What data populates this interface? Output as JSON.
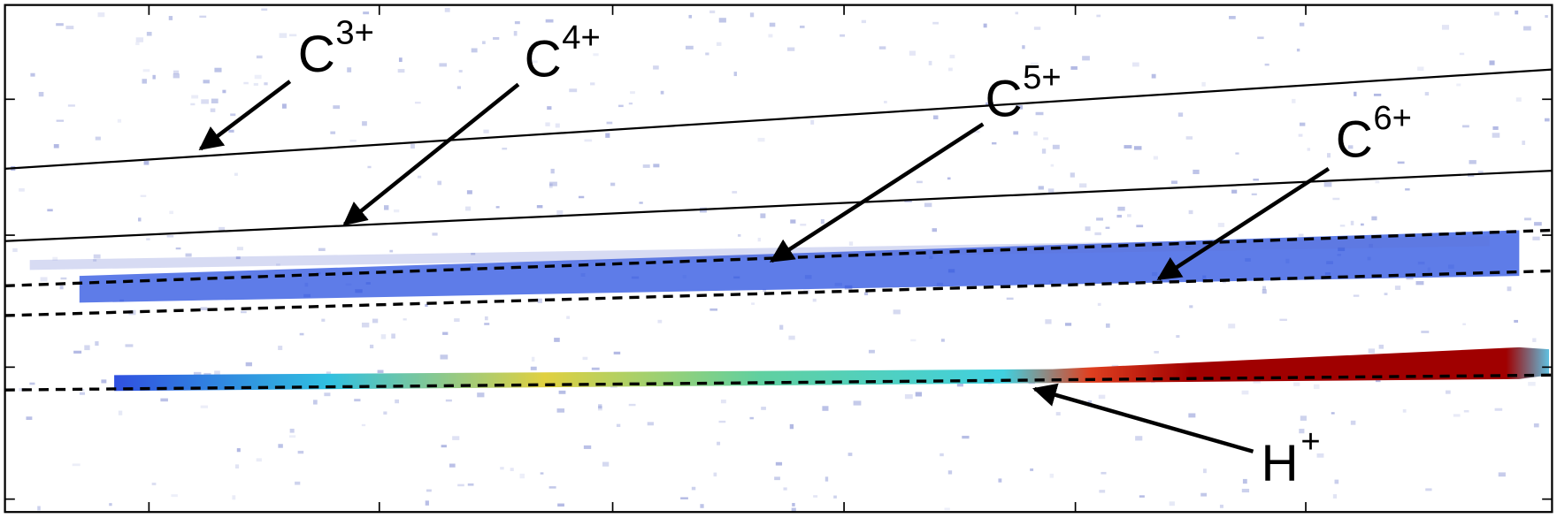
{
  "labels": [
    {
      "base": "C",
      "charge": "3+"
    },
    {
      "base": "C",
      "charge": "4+"
    },
    {
      "base": "C",
      "charge": "5+"
    },
    {
      "base": "C",
      "charge": "6+"
    },
    {
      "base": "H",
      "charge": "+"
    }
  ]
}
